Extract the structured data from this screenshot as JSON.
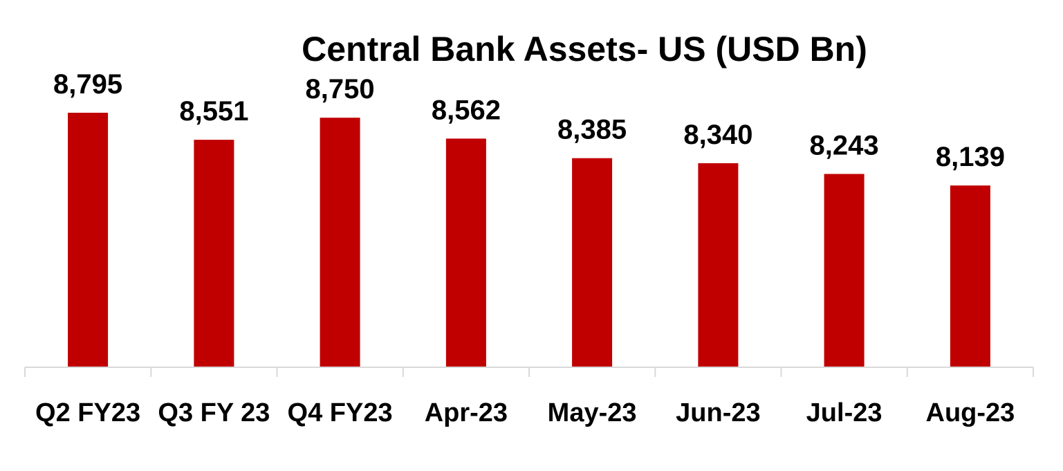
{
  "chart_data": {
    "type": "bar",
    "title": "Central Bank Assets- US (USD Bn)",
    "categories": [
      "Q2 FY23",
      "Q3 FY 23",
      "Q4 FY23",
      "Apr-23",
      "May-23",
      "Jun-23",
      "Jul-23",
      "Aug-23"
    ],
    "values": [
      8795,
      8551,
      8750,
      8562,
      8385,
      8340,
      8243,
      8139
    ],
    "data_labels": [
      "8,795",
      "8,551",
      "8,750",
      "8,562",
      "8,385",
      "8,340",
      "8,243",
      "8,139"
    ],
    "xlabel": "",
    "ylabel": "",
    "ylim": [
      6500,
      8795
    ],
    "y_axis_visible": false,
    "grid": false,
    "legend": "none",
    "colors": {
      "bar": "#c00000",
      "axis": "#d9d9d9",
      "text": "#000000"
    }
  }
}
